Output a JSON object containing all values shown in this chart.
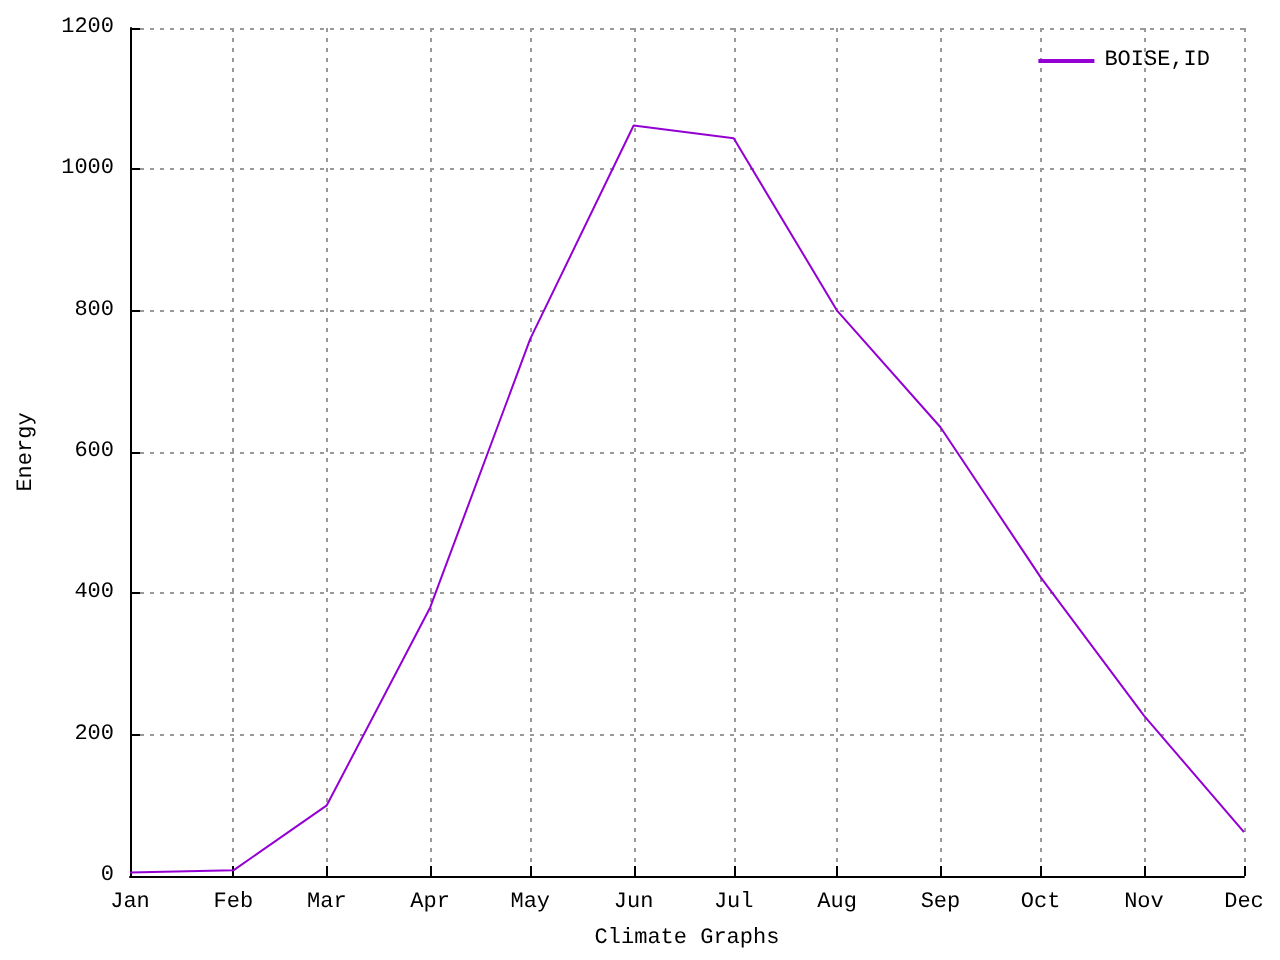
{
  "chart_data": {
    "type": "line",
    "xlabel": "Climate Graphs",
    "ylabel": "Energy",
    "x": [
      "--01-01",
      "--02-01",
      "--03-01",
      "--04-01",
      "--05-01",
      "--06-01",
      "--07-01",
      "--08-01",
      "--09-01",
      "--10-01",
      "--11-01",
      "--12-01"
    ],
    "series": [
      {
        "name": "BOISE,ID",
        "color": "#9400d3",
        "values": [
          5,
          8,
          100,
          380,
          760,
          1062,
          1044,
          800,
          635,
          423,
          227,
          62
        ]
      }
    ],
    "xlim": [
      "--01-01",
      "--12-01"
    ],
    "xticks": [
      {
        "value": "--01-01",
        "label": "Jan"
      },
      {
        "value": "--02-01",
        "label": "Feb"
      },
      {
        "value": "--03-01",
        "label": "Mar"
      },
      {
        "value": "--04-01",
        "label": "Apr"
      },
      {
        "value": "--05-01",
        "label": "May"
      },
      {
        "value": "--06-01",
        "label": "Jun"
      },
      {
        "value": "--07-01",
        "label": "Jul"
      },
      {
        "value": "--08-01",
        "label": "Aug"
      },
      {
        "value": "--09-01",
        "label": "Sep"
      },
      {
        "value": "--10-01",
        "label": "Oct"
      },
      {
        "value": "--11-01",
        "label": "Nov"
      },
      {
        "value": "--12-01",
        "label": "Dec"
      }
    ],
    "ylim": [
      0,
      1200
    ],
    "yticks": [
      0,
      200,
      400,
      600,
      800,
      1000,
      1200
    ],
    "grid": true,
    "legend": "top right",
    "marker": "none",
    "line_style": "solid"
  }
}
